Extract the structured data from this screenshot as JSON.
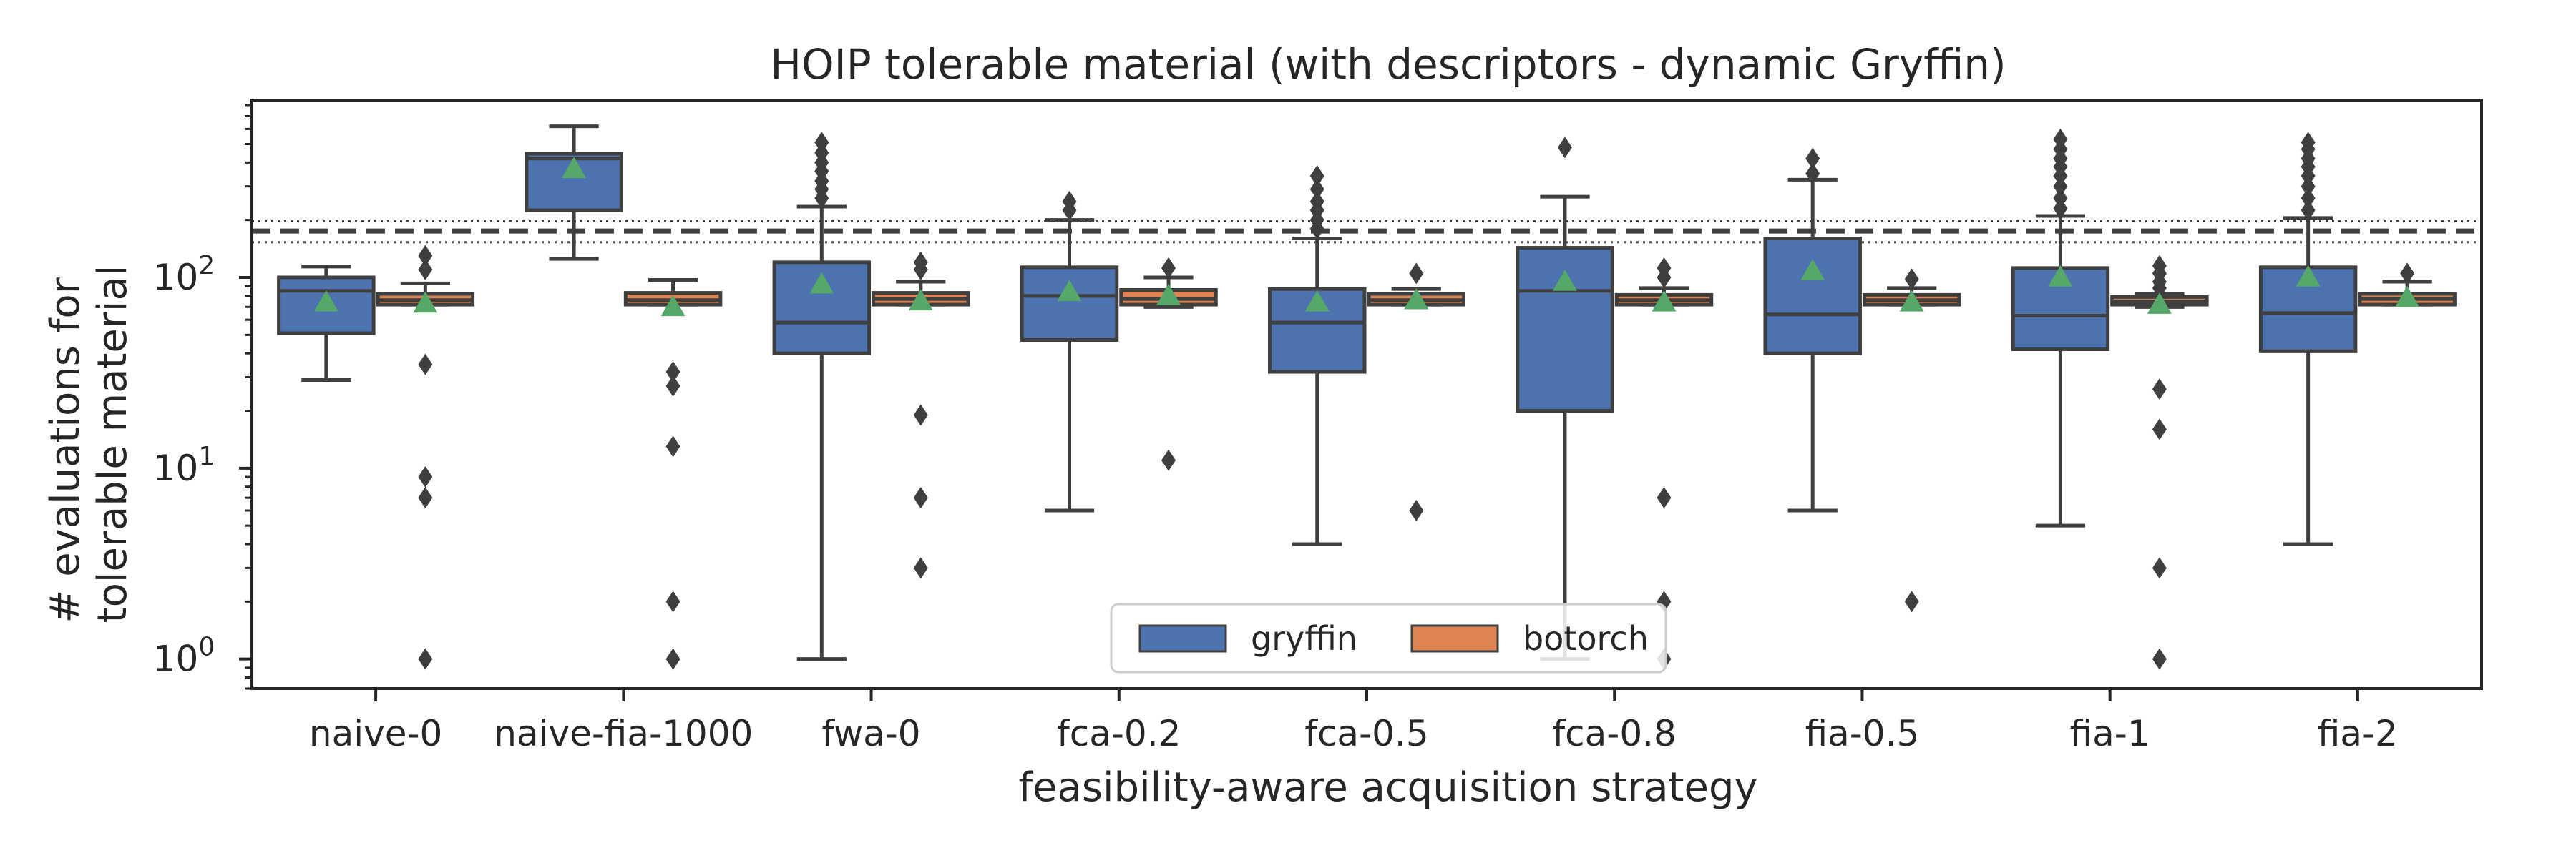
{
  "chart_data": {
    "type": "box",
    "title": "HOIP tolerable material (with descriptors - dynamic Gryffin)",
    "xlabel": "feasibility-aware acquisition strategy",
    "ylabel": [
      "# evaluations for",
      "tolerable material"
    ],
    "yscale": "log",
    "ylim": [
      0.7,
      850
    ],
    "yticks": [
      {
        "value": 1,
        "base": "10",
        "exp": "0"
      },
      {
        "value": 10,
        "base": "10",
        "exp": "1"
      },
      {
        "value": 100,
        "base": "10",
        "exp": "2"
      }
    ],
    "categories": [
      "naive-0",
      "naive-fia-1000",
      "fwa-0",
      "fca-0.2",
      "fca-0.5",
      "fca-0.8",
      "fia-0.5",
      "fia-1",
      "fia-2"
    ],
    "reference_lines": {
      "dashed": 175,
      "dotted": [
        153,
        197
      ]
    },
    "legend": {
      "position": "lower center"
    },
    "series": [
      {
        "name": "gryffin",
        "color": "#4c72b0",
        "boxes": [
          {
            "q1": 51,
            "median": 85,
            "q3": 100,
            "whislo": 29,
            "whishi": 114,
            "mean": 74,
            "fliers": []
          },
          {
            "q1": 225,
            "median": 420,
            "q3": 445,
            "whislo": 125,
            "whishi": 620,
            "mean": 370,
            "fliers": []
          },
          {
            "q1": 40,
            "median": 58,
            "q3": 120,
            "whislo": 1,
            "whishi": 235,
            "mean": 92,
            "fliers": [
              260,
              290,
              320,
              360,
              400,
              450,
              510
            ]
          },
          {
            "q1": 47,
            "median": 80,
            "q3": 113,
            "whislo": 6,
            "whishi": 200,
            "mean": 84,
            "fliers": [
              225,
              250
            ]
          },
          {
            "q1": 32,
            "median": 58,
            "q3": 87,
            "whislo": 4,
            "whishi": 160,
            "mean": 74,
            "fliers": [
              180,
              200,
              225,
              250,
              290,
              340
            ]
          },
          {
            "q1": 20,
            "median": 85,
            "q3": 143,
            "whislo": 1,
            "whishi": 265,
            "mean": 95,
            "fliers": [
              480
            ]
          },
          {
            "q1": 40,
            "median": 64,
            "q3": 160,
            "whislo": 6,
            "whishi": 325,
            "mean": 108,
            "fliers": [
              350,
              420
            ]
          },
          {
            "q1": 42,
            "median": 63,
            "q3": 112,
            "whislo": 5,
            "whishi": 210,
            "mean": 100,
            "fliers": [
              230,
              260,
              300,
              340,
              380,
              420,
              470,
              530
            ]
          },
          {
            "q1": 41,
            "median": 65,
            "q3": 113,
            "whislo": 4,
            "whishi": 205,
            "mean": 100,
            "fliers": [
              225,
              260,
              300,
              340,
              380,
              420,
              470,
              510
            ]
          }
        ]
      },
      {
        "name": "botorch",
        "color": "#dd8452",
        "boxes": [
          {
            "q1": 72,
            "median": 76,
            "q3": 82,
            "whislo": 72,
            "whishi": 93,
            "mean": 73,
            "fliers": [
              1,
              7,
              9,
              35,
              110,
              130
            ]
          },
          {
            "q1": 72,
            "median": 76,
            "q3": 83,
            "whislo": 72,
            "whishi": 97,
            "mean": 70,
            "fliers": [
              1,
              2,
              13,
              27,
              32
            ]
          },
          {
            "q1": 72,
            "median": 77,
            "q3": 83,
            "whislo": 72,
            "whishi": 95,
            "mean": 75,
            "fliers": [
              3,
              7,
              19,
              110,
              120
            ]
          },
          {
            "q1": 72,
            "median": 77,
            "q3": 86,
            "whislo": 70,
            "whishi": 100,
            "mean": 80,
            "fliers": [
              11,
              112
            ]
          },
          {
            "q1": 72,
            "median": 76,
            "q3": 82,
            "whislo": 72,
            "whishi": 87,
            "mean": 76,
            "fliers": [
              6,
              105
            ]
          },
          {
            "q1": 72,
            "median": 76,
            "q3": 81,
            "whislo": 72,
            "whishi": 88,
            "mean": 74,
            "fliers": [
              1,
              2,
              7,
              100,
              112
            ]
          },
          {
            "q1": 72,
            "median": 76,
            "q3": 81,
            "whislo": 72,
            "whishi": 88,
            "mean": 74,
            "fliers": [
              2,
              98
            ]
          },
          {
            "q1": 72,
            "median": 75,
            "q3": 79,
            "whislo": 70,
            "whishi": 82,
            "mean": 72,
            "fliers": [
              1,
              3,
              16,
              26,
              88,
              95,
              105,
              115
            ]
          },
          {
            "q1": 72,
            "median": 77,
            "q3": 82,
            "whislo": 72,
            "whishi": 95,
            "mean": 78,
            "fliers": [
              105
            ]
          }
        ]
      }
    ]
  }
}
